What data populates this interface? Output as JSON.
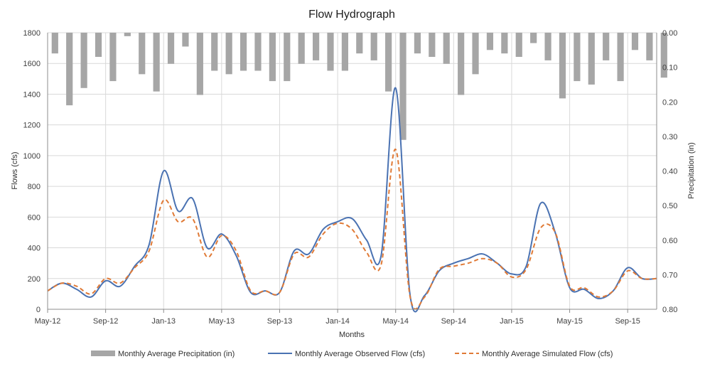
{
  "chart_data": {
    "type": "bar+line",
    "title": "Flow Hydrograph",
    "xlabel": "Months",
    "ylabel": "Flows (cfs)",
    "y2label": "Precipitation (in)",
    "ylim": [
      0,
      1800
    ],
    "y_ticks": [
      "0",
      "200",
      "400",
      "600",
      "800",
      "1000",
      "1200",
      "1400",
      "1600",
      "1800"
    ],
    "y2lim": [
      0,
      0.8
    ],
    "y2_ticks": [
      "0.00",
      "0.10",
      "0.20",
      "0.30",
      "0.40",
      "0.50",
      "0.60",
      "0.70",
      "0.80"
    ],
    "x_ticks": [
      {
        "label": "May-12",
        "index": 0
      },
      {
        "label": "Sep-12",
        "index": 4
      },
      {
        "label": "Jan-13",
        "index": 8
      },
      {
        "label": "May-13",
        "index": 12
      },
      {
        "label": "Sep-13",
        "index": 16
      },
      {
        "label": "Jan-14",
        "index": 20
      },
      {
        "label": "May-14",
        "index": 24
      },
      {
        "label": "Sep-14",
        "index": 28
      },
      {
        "label": "Jan-15",
        "index": 32
      },
      {
        "label": "May-15",
        "index": 36
      },
      {
        "label": "Sep-15",
        "index": 40
      }
    ],
    "n_months": 43,
    "grid": true,
    "legend_position": "bottom",
    "series": [
      {
        "name": "Monthly Average Precipitation (in)",
        "kind": "bar",
        "axis": "right",
        "color": "#a6a6a6",
        "values": [
          0.06,
          0.21,
          0.16,
          0.07,
          0.14,
          0.01,
          0.12,
          0.17,
          0.09,
          0.04,
          0.18,
          0.11,
          0.12,
          0.11,
          0.11,
          0.14,
          0.14,
          0.09,
          0.08,
          0.11,
          0.11,
          0.06,
          0.08,
          0.17,
          0.31,
          0.06,
          0.07,
          0.09,
          0.18,
          0.12,
          0.05,
          0.06,
          0.07,
          0.03,
          0.08,
          0.19,
          0.14,
          0.15,
          0.08,
          0.14,
          0.05,
          0.08,
          0.13
        ]
      },
      {
        "name": "Monthly Average Observed Flow (cfs)",
        "kind": "line",
        "axis": "left",
        "color": "#4a72b2",
        "values": [
          120,
          170,
          130,
          80,
          185,
          150,
          280,
          420,
          900,
          640,
          720,
          400,
          490,
          350,
          110,
          120,
          110,
          380,
          360,
          520,
          570,
          590,
          450,
          350,
          1440,
          90,
          90,
          250,
          300,
          330,
          360,
          300,
          230,
          280,
          690,
          500,
          140,
          130,
          70,
          120,
          270,
          200,
          200
        ]
      },
      {
        "name": "Monthly Average Simulated Flow (cfs)",
        "kind": "line",
        "axis": "left",
        "color": "#e07a36",
        "values": [
          120,
          170,
          150,
          100,
          200,
          170,
          270,
          380,
          710,
          570,
          590,
          340,
          480,
          380,
          120,
          120,
          110,
          360,
          340,
          490,
          560,
          520,
          370,
          290,
          1040,
          80,
          80,
          260,
          280,
          300,
          330,
          300,
          210,
          260,
          530,
          500,
          150,
          140,
          80,
          120,
          250,
          200,
          200
        ]
      }
    ]
  }
}
